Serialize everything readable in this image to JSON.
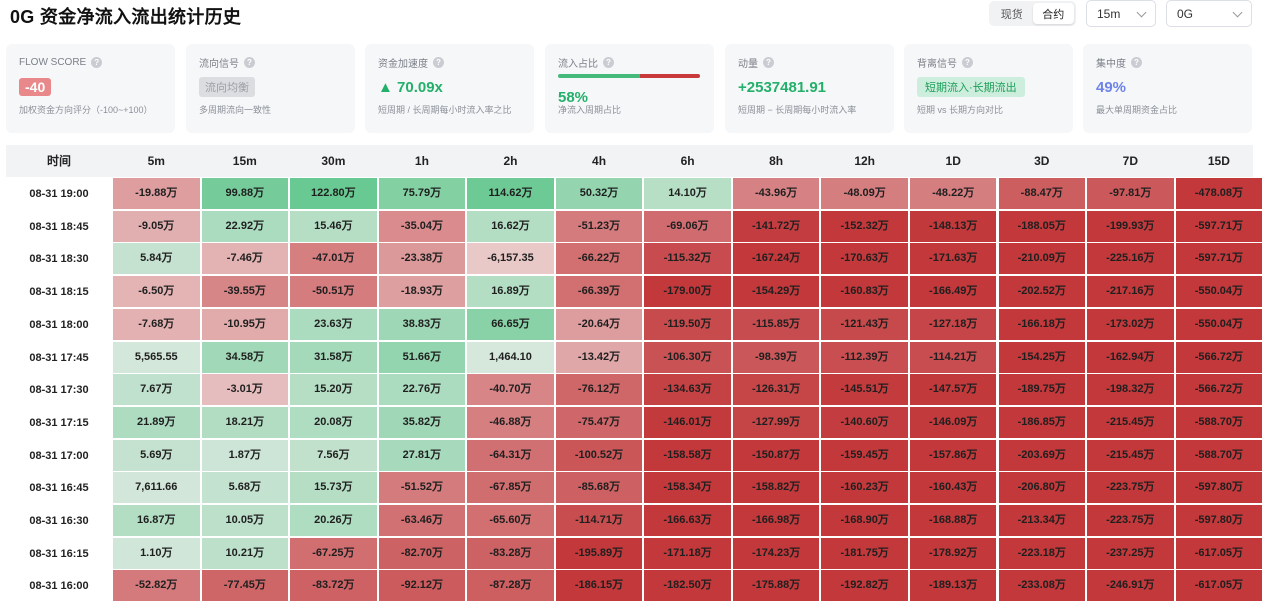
{
  "page": {
    "title": "0G 资金净流入流出统计历史"
  },
  "controls": {
    "market_options": [
      "现货",
      "合约"
    ],
    "market_selected": "合约",
    "interval": "15m",
    "symbol": "0G"
  },
  "cards": [
    {
      "key": "flow_score",
      "label": "FLOW SCORE",
      "value": "-40",
      "sub": "加权资金方向评分（-100~+100）"
    },
    {
      "key": "flow_signal",
      "label": "流向信号",
      "value": "流向均衡",
      "sub": "多周期流向一致性"
    },
    {
      "key": "accel",
      "label": "资金加速度",
      "value": "▲ 70.09x",
      "sub": "短周期 / 长周期每小时流入率之比"
    },
    {
      "key": "inflow_ratio",
      "label": "流入占比",
      "value": "58%",
      "inflow_fraction": 0.58,
      "sub": "净流入周期占比"
    },
    {
      "key": "momentum",
      "label": "动量",
      "value": "+2537481.91",
      "sub": "短周期 − 长周期每小时流入率"
    },
    {
      "key": "divergence",
      "label": "背离信号",
      "value": "短期流入·长期流出",
      "sub": "短期 vs 长期方向对比"
    },
    {
      "key": "concentration",
      "label": "集中度",
      "value": "49%",
      "sub": "最大单周期资金占比"
    }
  ],
  "colors": {
    "pos_strong": "#5cc589",
    "neg_strong": "#c2383b",
    "neutral": "#f4f0f0"
  },
  "table": {
    "time_header": "时间",
    "columns": [
      "5m",
      "15m",
      "30m",
      "1h",
      "2h",
      "4h",
      "6h",
      "8h",
      "12h",
      "1D",
      "3D",
      "7D",
      "15D"
    ],
    "rows": [
      {
        "time": "08-31 19:00",
        "cells": [
          "-19.88万",
          "99.88万",
          "122.80万",
          "75.79万",
          "114.62万",
          "50.32万",
          "14.10万",
          "-43.96万",
          "-48.09万",
          "-48.22万",
          "-88.47万",
          "-97.81万",
          "-478.08万"
        ]
      },
      {
        "time": "08-31 18:45",
        "cells": [
          "-9.05万",
          "22.92万",
          "15.46万",
          "-35.04万",
          "16.62万",
          "-51.23万",
          "-69.06万",
          "-141.72万",
          "-152.32万",
          "-148.13万",
          "-188.05万",
          "-199.93万",
          "-597.71万"
        ]
      },
      {
        "time": "08-31 18:30",
        "cells": [
          "5.84万",
          "-7.46万",
          "-47.01万",
          "-23.38万",
          "-6,157.35",
          "-66.22万",
          "-115.32万",
          "-167.24万",
          "-170.63万",
          "-171.63万",
          "-210.09万",
          "-225.16万",
          "-597.71万"
        ]
      },
      {
        "time": "08-31 18:15",
        "cells": [
          "-6.50万",
          "-39.55万",
          "-50.51万",
          "-18.93万",
          "16.89万",
          "-66.39万",
          "-179.00万",
          "-154.29万",
          "-160.83万",
          "-166.49万",
          "-202.52万",
          "-217.16万",
          "-550.04万"
        ]
      },
      {
        "time": "08-31 18:00",
        "cells": [
          "-7.68万",
          "-10.95万",
          "23.63万",
          "38.83万",
          "66.65万",
          "-20.64万",
          "-119.50万",
          "-115.85万",
          "-121.43万",
          "-127.18万",
          "-166.18万",
          "-173.02万",
          "-550.04万"
        ]
      },
      {
        "time": "08-31 17:45",
        "cells": [
          "5,565.55",
          "34.58万",
          "31.58万",
          "51.66万",
          "1,464.10",
          "-13.42万",
          "-106.30万",
          "-98.39万",
          "-112.39万",
          "-114.21万",
          "-154.25万",
          "-162.94万",
          "-566.72万"
        ]
      },
      {
        "time": "08-31 17:30",
        "cells": [
          "7.67万",
          "-3.01万",
          "15.20万",
          "22.76万",
          "-40.70万",
          "-76.12万",
          "-134.63万",
          "-126.31万",
          "-145.51万",
          "-147.57万",
          "-189.75万",
          "-198.32万",
          "-566.72万"
        ]
      },
      {
        "time": "08-31 17:15",
        "cells": [
          "21.89万",
          "18.21万",
          "20.08万",
          "35.82万",
          "-46.88万",
          "-75.47万",
          "-146.01万",
          "-127.99万",
          "-140.60万",
          "-146.09万",
          "-186.85万",
          "-215.45万",
          "-588.70万"
        ]
      },
      {
        "time": "08-31 17:00",
        "cells": [
          "5.69万",
          "1.87万",
          "7.56万",
          "27.81万",
          "-64.31万",
          "-100.52万",
          "-158.58万",
          "-150.87万",
          "-159.45万",
          "-157.86万",
          "-203.69万",
          "-215.45万",
          "-588.70万"
        ]
      },
      {
        "time": "08-31 16:45",
        "cells": [
          "7,611.66",
          "5.68万",
          "15.73万",
          "-51.52万",
          "-67.85万",
          "-85.68万",
          "-158.34万",
          "-158.82万",
          "-160.23万",
          "-160.43万",
          "-206.80万",
          "-223.75万",
          "-597.80万"
        ]
      },
      {
        "time": "08-31 16:30",
        "cells": [
          "16.87万",
          "10.05万",
          "20.26万",
          "-63.46万",
          "-65.60万",
          "-114.71万",
          "-166.63万",
          "-166.98万",
          "-168.90万",
          "-168.88万",
          "-213.34万",
          "-223.75万",
          "-597.80万"
        ]
      },
      {
        "time": "08-31 16:15",
        "cells": [
          "1.10万",
          "10.21万",
          "-67.25万",
          "-82.70万",
          "-83.28万",
          "-195.89万",
          "-171.18万",
          "-174.23万",
          "-181.75万",
          "-178.92万",
          "-223.18万",
          "-237.25万",
          "-617.05万"
        ]
      },
      {
        "time": "08-31 16:00",
        "cells": [
          "-52.82万",
          "-77.45万",
          "-83.72万",
          "-92.12万",
          "-87.28万",
          "-186.15万",
          "-182.50万",
          "-175.88万",
          "-192.82万",
          "-189.13万",
          "-233.08万",
          "-246.91万",
          "-617.05万"
        ]
      }
    ]
  }
}
